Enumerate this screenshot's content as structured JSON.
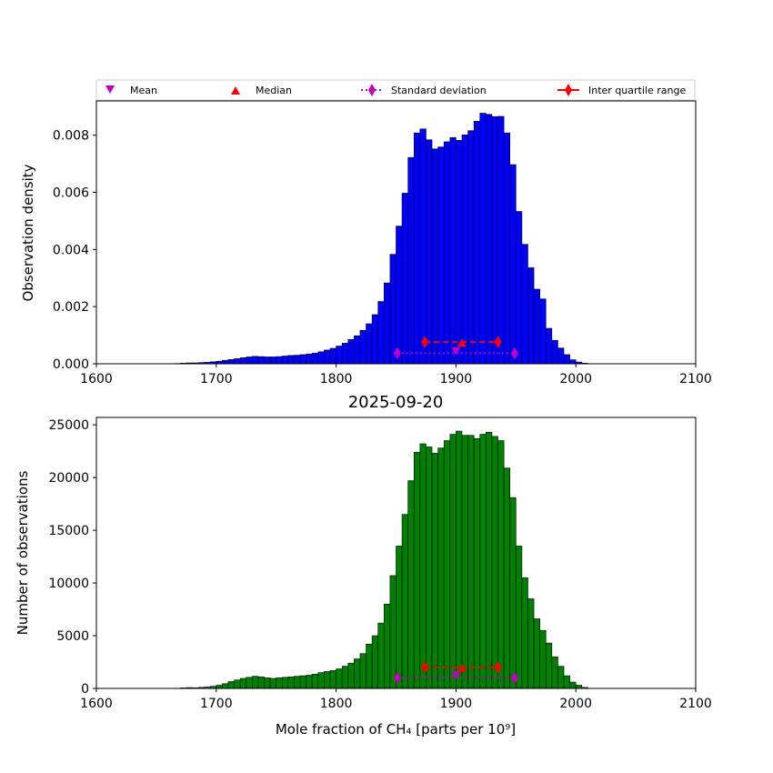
{
  "legend": {
    "mean": "Mean",
    "median": "Median",
    "std": "Standard deviation",
    "iqr": "Inter quartile range"
  },
  "colors": {
    "density_bars": "#0000ff",
    "count_bars": "#008000",
    "mean": "#bf00bf",
    "median": "#ff0000",
    "std": "#bf00bf",
    "iqr": "#ff0000"
  },
  "chart_data": [
    {
      "type": "bar",
      "panel": "top",
      "title": "",
      "xlabel": "",
      "ylabel": "Observation density",
      "xlim": [
        1600,
        2100
      ],
      "ylim": [
        0,
        0.0092
      ],
      "xticks": [
        "1600",
        "1700",
        "1800",
        "1900",
        "2000",
        "2100"
      ],
      "yticks": [
        "0.000",
        "0.002",
        "0.004",
        "0.006",
        "0.008"
      ],
      "ytick_values": [
        0,
        0.002,
        0.004,
        0.006,
        0.008
      ],
      "bin_start": 1665,
      "bin_width": 5,
      "values": [
        1e-05,
        2e-05,
        3e-05,
        3e-05,
        4e-05,
        5e-05,
        7e-05,
        9e-05,
        0.00012,
        0.00015,
        0.00018,
        0.00021,
        0.00024,
        0.00026,
        0.00025,
        0.00024,
        0.00024,
        0.00025,
        0.00027,
        0.00029,
        0.0003,
        0.00032,
        0.00034,
        0.00037,
        0.00042,
        0.00048,
        0.00054,
        0.00062,
        0.00072,
        0.00085,
        0.00098,
        0.00117,
        0.0014,
        0.00172,
        0.00218,
        0.00283,
        0.00383,
        0.00482,
        0.00597,
        0.00722,
        0.00808,
        0.00822,
        0.00784,
        0.00752,
        0.00759,
        0.00777,
        0.00792,
        0.00782,
        0.00801,
        0.00816,
        0.00849,
        0.00877,
        0.00873,
        0.00865,
        0.00866,
        0.00808,
        0.00697,
        0.00533,
        0.00418,
        0.00336,
        0.00261,
        0.00227,
        0.00124,
        0.00082,
        0.00055,
        0.00032,
        0.00014,
        6e-05,
        2e-05
      ],
      "stats": {
        "mean": {
          "x": 1900,
          "y": 0.00042
        },
        "std": {
          "x1": 1851,
          "x2": 1949,
          "y": 0.00037
        },
        "median": {
          "x": 1905,
          "y": 0.00076
        },
        "iqr": {
          "x1": 1874,
          "x2": 1935,
          "y": 0.00076
        }
      }
    },
    {
      "type": "bar",
      "panel": "bottom",
      "title": "2025-09-20",
      "xlabel": "Mole fraction of CH₄ [parts per 10⁹]",
      "ylabel": "Number of observations",
      "xlim": [
        1600,
        2100
      ],
      "ylim": [
        0,
        25700
      ],
      "xticks": [
        "1600",
        "1700",
        "1800",
        "1900",
        "2000",
        "2100"
      ],
      "yticks": [
        "0",
        "5000",
        "10000",
        "15000",
        "20000",
        "25000"
      ],
      "ytick_values": [
        0,
        5000,
        10000,
        15000,
        20000,
        25000
      ],
      "bin_start": 1665,
      "bin_width": 5,
      "values": [
        20,
        50,
        80,
        60,
        100,
        130,
        200,
        300,
        450,
        650,
        800,
        950,
        1050,
        1150,
        1100,
        1000,
        950,
        1000,
        1050,
        1100,
        1150,
        1200,
        1250,
        1350,
        1500,
        1600,
        1700,
        1850,
        2100,
        2400,
        2800,
        3300,
        4200,
        5000,
        6200,
        8000,
        10700,
        13500,
        16500,
        19700,
        22400,
        23200,
        22900,
        22300,
        22800,
        23500,
        24100,
        24400,
        24000,
        24000,
        23700,
        24100,
        24300,
        23900,
        23500,
        20900,
        18100,
        13500,
        10500,
        8500,
        6600,
        5500,
        4300,
        3000,
        2100,
        1200,
        600,
        300,
        100
      ],
      "stats": {
        "mean": {
          "x": 1900,
          "y": 1200
        },
        "std": {
          "x1": 1851,
          "x2": 1949,
          "y": 1000
        },
        "median": {
          "x": 1905,
          "y": 2000
        },
        "iqr": {
          "x1": 1874,
          "x2": 1935,
          "y": 2000
        }
      }
    }
  ]
}
